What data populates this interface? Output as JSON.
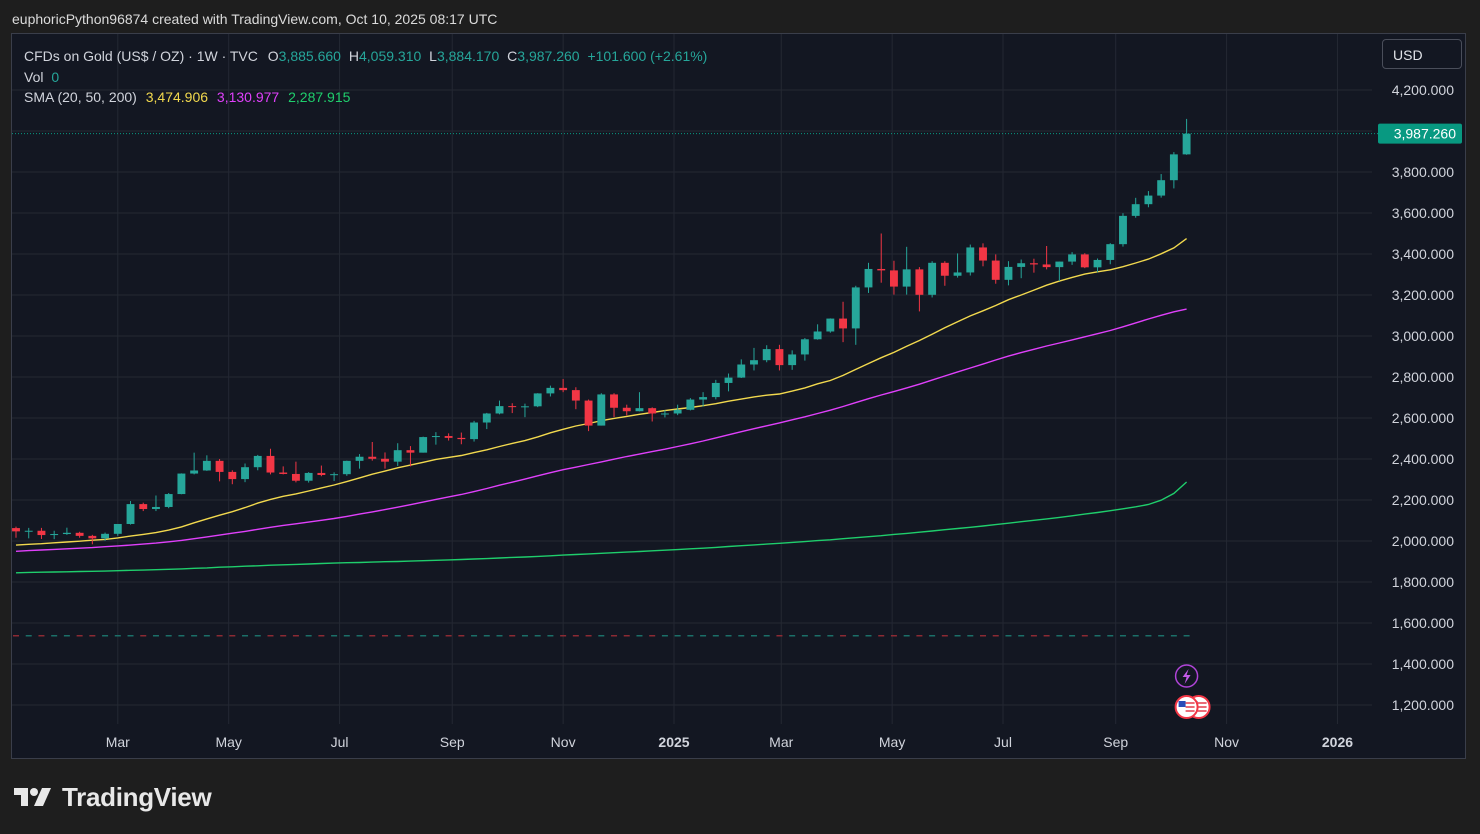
{
  "header": {
    "text": "euphoricPython96874 created with TradingView.com, Oct 10, 2025 08:17 UTC"
  },
  "legend": {
    "symbol": "CFDs on Gold (US$ / OZ) · 1W · TVC",
    "o_label": "O",
    "o_value": "3,885.660",
    "h_label": "H",
    "h_value": "4,059.310",
    "l_label": "L",
    "l_value": "3,884.170",
    "c_label": "C",
    "c_value": "3,987.260",
    "change": "+101.600 (+2.61%)",
    "vol_label": "Vol",
    "vol_value": "0",
    "sma_label": "SMA (20, 50, 200)",
    "sma20": "3,474.906",
    "sma50": "3,130.977",
    "sma200": "2,287.915"
  },
  "currency": "USD",
  "brand": {
    "name": "TradingView",
    "logo_icon": "tradingview-logo-icon"
  },
  "colors": {
    "up": "#26a69a",
    "down": "#f23645",
    "sma20": "#f2d94e",
    "sma50": "#e040fb",
    "sma200": "#1fce6c",
    "price_tag": "#089981"
  },
  "chart_data": {
    "type": "candlestick",
    "timeframe": "1W",
    "ylim": [
      1100,
      4350
    ],
    "y_ticks": [
      1200,
      1400,
      1600,
      1800,
      2000,
      2200,
      2400,
      2600,
      2800,
      3000,
      3200,
      3400,
      3600,
      3800,
      4000,
      4200
    ],
    "y_tick_labels": [
      "1,200.000",
      "1,400.000",
      "1,600.000",
      "1,800.000",
      "2,000.000",
      "2,200.000",
      "2,400.000",
      "2,600.000",
      "2,800.000",
      "3,000.000",
      "3,200.000",
      "3,400.000",
      "3,600.000",
      "3,800.000",
      "",
      "4,200.000"
    ],
    "x_ticks": [
      {
        "date": "2024-03-01",
        "label": "Mar"
      },
      {
        "date": "2024-05-01",
        "label": "May"
      },
      {
        "date": "2024-07-01",
        "label": "Jul"
      },
      {
        "date": "2024-09-01",
        "label": "Sep"
      },
      {
        "date": "2024-11-01",
        "label": "Nov"
      },
      {
        "date": "2025-01-01",
        "label": "2025"
      },
      {
        "date": "2025-03-01",
        "label": "Mar"
      },
      {
        "date": "2025-05-01",
        "label": "May"
      },
      {
        "date": "2025-07-01",
        "label": "Jul"
      },
      {
        "date": "2025-09-01",
        "label": "Sep"
      },
      {
        "date": "2025-11-01",
        "label": "Nov"
      },
      {
        "date": "2026-01-01",
        "label": "2026"
      }
    ],
    "xlim": [
      "2024-01-05",
      "2026-01-20"
    ],
    "last_price": 3987.26,
    "last_price_label": "3,987.260",
    "ohlc": [
      [
        "2024-01-05",
        2063,
        2070,
        2016,
        2047
      ],
      [
        "2024-01-12",
        2047,
        2064,
        2013,
        2050
      ],
      [
        "2024-01-19",
        2050,
        2064,
        2010,
        2029
      ],
      [
        "2024-01-26",
        2029,
        2050,
        2009,
        2034
      ],
      [
        "2024-02-02",
        2034,
        2065,
        2030,
        2040
      ],
      [
        "2024-02-09",
        2040,
        2045,
        2016,
        2025
      ],
      [
        "2024-02-16",
        2025,
        2030,
        1984,
        2013
      ],
      [
        "2024-02-23",
        2013,
        2041,
        2001,
        2035
      ],
      [
        "2024-03-01",
        2035,
        2083,
        2025,
        2083
      ],
      [
        "2024-03-08",
        2083,
        2195,
        2080,
        2180
      ],
      [
        "2024-03-15",
        2180,
        2187,
        2146,
        2156
      ],
      [
        "2024-03-22",
        2156,
        2222,
        2146,
        2166
      ],
      [
        "2024-03-29",
        2166,
        2234,
        2160,
        2229
      ],
      [
        "2024-04-05",
        2229,
        2330,
        2228,
        2329
      ],
      [
        "2024-04-12",
        2329,
        2431,
        2325,
        2344
      ],
      [
        "2024-04-19",
        2344,
        2418,
        2342,
        2391
      ],
      [
        "2024-04-26",
        2391,
        2400,
        2291,
        2337
      ],
      [
        "2024-05-03",
        2337,
        2345,
        2277,
        2302
      ],
      [
        "2024-05-10",
        2302,
        2378,
        2287,
        2360
      ],
      [
        "2024-05-17",
        2360,
        2420,
        2345,
        2415
      ],
      [
        "2024-05-24",
        2415,
        2450,
        2325,
        2334
      ],
      [
        "2024-05-31",
        2334,
        2364,
        2325,
        2327
      ],
      [
        "2024-06-07",
        2327,
        2387,
        2286,
        2294
      ],
      [
        "2024-06-14",
        2294,
        2336,
        2285,
        2332
      ],
      [
        "2024-06-21",
        2332,
        2368,
        2316,
        2322
      ],
      [
        "2024-06-28",
        2322,
        2335,
        2293,
        2326
      ],
      [
        "2024-07-05",
        2326,
        2392,
        2318,
        2391
      ],
      [
        "2024-07-12",
        2391,
        2424,
        2353,
        2411
      ],
      [
        "2024-07-19",
        2411,
        2483,
        2392,
        2401
      ],
      [
        "2024-07-26",
        2401,
        2432,
        2353,
        2387
      ],
      [
        "2024-08-02",
        2387,
        2477,
        2366,
        2443
      ],
      [
        "2024-08-09",
        2443,
        2463,
        2364,
        2431
      ],
      [
        "2024-08-16",
        2431,
        2509,
        2431,
        2507
      ],
      [
        "2024-08-23",
        2507,
        2531,
        2470,
        2512
      ],
      [
        "2024-08-30",
        2512,
        2525,
        2490,
        2503
      ],
      [
        "2024-09-06",
        2503,
        2529,
        2472,
        2497
      ],
      [
        "2024-09-13",
        2497,
        2586,
        2485,
        2578
      ],
      [
        "2024-09-20",
        2578,
        2625,
        2546,
        2622
      ],
      [
        "2024-09-27",
        2622,
        2685,
        2618,
        2658
      ],
      [
        "2024-10-04",
        2658,
        2672,
        2624,
        2653
      ],
      [
        "2024-10-11",
        2653,
        2670,
        2604,
        2657
      ],
      [
        "2024-10-18",
        2657,
        2721,
        2653,
        2720
      ],
      [
        "2024-10-25",
        2720,
        2758,
        2705,
        2747
      ],
      [
        "2024-11-01",
        2747,
        2790,
        2726,
        2736
      ],
      [
        "2024-11-08",
        2736,
        2750,
        2643,
        2685
      ],
      [
        "2024-11-15",
        2685,
        2690,
        2536,
        2563
      ],
      [
        "2024-11-22",
        2563,
        2721,
        2563,
        2715
      ],
      [
        "2024-11-29",
        2715,
        2721,
        2605,
        2650
      ],
      [
        "2024-12-06",
        2650,
        2665,
        2613,
        2633
      ],
      [
        "2024-12-13",
        2633,
        2726,
        2632,
        2648
      ],
      [
        "2024-12-20",
        2648,
        2652,
        2583,
        2622
      ],
      [
        "2024-12-27",
        2622,
        2638,
        2603,
        2622
      ],
      [
        "2025-01-03",
        2622,
        2665,
        2614,
        2640
      ],
      [
        "2025-01-10",
        2640,
        2697,
        2637,
        2690
      ],
      [
        "2025-01-17",
        2690,
        2726,
        2656,
        2702
      ],
      [
        "2025-01-24",
        2702,
        2786,
        2691,
        2771
      ],
      [
        "2025-01-31",
        2771,
        2817,
        2730,
        2797
      ],
      [
        "2025-02-07",
        2797,
        2886,
        2795,
        2861
      ],
      [
        "2025-02-14",
        2861,
        2942,
        2832,
        2882
      ],
      [
        "2025-02-21",
        2882,
        2955,
        2872,
        2936
      ],
      [
        "2025-02-28",
        2936,
        2957,
        2832,
        2858
      ],
      [
        "2025-03-07",
        2858,
        2930,
        2835,
        2910
      ],
      [
        "2025-03-14",
        2910,
        2990,
        2880,
        2984
      ],
      [
        "2025-03-21",
        2984,
        3057,
        2982,
        3022
      ],
      [
        "2025-03-28",
        3022,
        3086,
        3016,
        3085
      ],
      [
        "2025-04-04",
        3085,
        3167,
        2970,
        3037
      ],
      [
        "2025-04-11",
        3037,
        3245,
        2957,
        3237
      ],
      [
        "2025-04-18",
        3237,
        3357,
        3210,
        3327
      ],
      [
        "2025-04-25",
        3327,
        3500,
        3260,
        3320
      ],
      [
        "2025-05-02",
        3320,
        3367,
        3202,
        3241
      ],
      [
        "2025-05-09",
        3241,
        3435,
        3202,
        3325
      ],
      [
        "2025-05-16",
        3325,
        3336,
        3120,
        3201
      ],
      [
        "2025-05-23",
        3201,
        3365,
        3188,
        3357
      ],
      [
        "2025-05-30",
        3357,
        3365,
        3245,
        3294
      ],
      [
        "2025-06-06",
        3294,
        3403,
        3285,
        3310
      ],
      [
        "2025-06-13",
        3310,
        3446,
        3295,
        3432
      ],
      [
        "2025-06-20",
        3432,
        3452,
        3340,
        3368
      ],
      [
        "2025-06-27",
        3368,
        3398,
        3255,
        3274
      ],
      [
        "2025-07-04",
        3274,
        3365,
        3247,
        3337
      ],
      [
        "2025-07-11",
        3337,
        3373,
        3282,
        3355
      ],
      [
        "2025-07-18",
        3355,
        3377,
        3309,
        3349
      ],
      [
        "2025-07-25",
        3349,
        3439,
        3325,
        3336
      ],
      [
        "2025-08-01",
        3336,
        3363,
        3268,
        3363
      ],
      [
        "2025-08-08",
        3363,
        3409,
        3347,
        3398
      ],
      [
        "2025-08-15",
        3398,
        3404,
        3331,
        3335
      ],
      [
        "2025-08-22",
        3335,
        3378,
        3311,
        3371
      ],
      [
        "2025-08-29",
        3371,
        3453,
        3350,
        3448
      ],
      [
        "2025-09-05",
        3448,
        3599,
        3436,
        3586
      ],
      [
        "2025-09-12",
        3586,
        3674,
        3577,
        3643
      ],
      [
        "2025-09-19",
        3643,
        3707,
        3628,
        3685
      ],
      [
        "2025-09-26",
        3685,
        3790,
        3675,
        3760
      ],
      [
        "2025-10-03",
        3760,
        3897,
        3720,
        3886
      ],
      [
        "2025-10-10",
        3886,
        4059,
        3884,
        3987
      ]
    ],
    "sma20": [
      1980,
      1984,
      1987,
      1991,
      1995,
      1999,
      2004,
      2008,
      2015,
      2024,
      2032,
      2041,
      2053,
      2069,
      2089,
      2108,
      2126,
      2143,
      2163,
      2185,
      2203,
      2218,
      2230,
      2244,
      2259,
      2273,
      2290,
      2308,
      2326,
      2341,
      2357,
      2370,
      2384,
      2398,
      2408,
      2417,
      2431,
      2445,
      2461,
      2476,
      2490,
      2508,
      2528,
      2545,
      2561,
      2573,
      2587,
      2598,
      2608,
      2618,
      2627,
      2636,
      2644,
      2651,
      2660,
      2670,
      2682,
      2692,
      2703,
      2711,
      2717,
      2731,
      2747,
      2767,
      2783,
      2808,
      2837,
      2866,
      2894,
      2920,
      2950,
      2978,
      3009,
      3040,
      3070,
      3098,
      3123,
      3149,
      3177,
      3200,
      3224,
      3248,
      3268,
      3286,
      3302,
      3313,
      3323,
      3338,
      3356,
      3375,
      3401,
      3430,
      3475
    ],
    "sma50": [
      1950,
      1953,
      1956,
      1959,
      1962,
      1965,
      1968,
      1972,
      1976,
      1980,
      1985,
      1990,
      1996,
      2003,
      2011,
      2020,
      2029,
      2038,
      2047,
      2057,
      2067,
      2076,
      2084,
      2092,
      2101,
      2110,
      2120,
      2131,
      2142,
      2153,
      2165,
      2177,
      2190,
      2203,
      2215,
      2227,
      2241,
      2256,
      2272,
      2287,
      2302,
      2318,
      2333,
      2348,
      2360,
      2373,
      2386,
      2399,
      2412,
      2424,
      2436,
      2448,
      2461,
      2474,
      2488,
      2503,
      2518,
      2533,
      2548,
      2562,
      2576,
      2591,
      2606,
      2622,
      2638,
      2656,
      2675,
      2694,
      2712,
      2729,
      2747,
      2765,
      2785,
      2805,
      2825,
      2844,
      2863,
      2883,
      2902,
      2919,
      2935,
      2951,
      2966,
      2981,
      2996,
      3011,
      3027,
      3045,
      3064,
      3083,
      3101,
      3118,
      3131
    ],
    "sma200": [
      1845,
      1847,
      1848,
      1849,
      1850,
      1851,
      1852,
      1853,
      1855,
      1857,
      1858,
      1860,
      1862,
      1864,
      1867,
      1869,
      1872,
      1874,
      1877,
      1879,
      1882,
      1884,
      1886,
      1888,
      1890,
      1892,
      1894,
      1895,
      1897,
      1899,
      1900,
      1902,
      1904,
      1906,
      1908,
      1910,
      1912,
      1914,
      1917,
      1920,
      1922,
      1925,
      1928,
      1931,
      1934,
      1937,
      1940,
      1943,
      1946,
      1949,
      1952,
      1955,
      1958,
      1962,
      1965,
      1969,
      1973,
      1977,
      1981,
      1985,
      1989,
      1993,
      1997,
      2002,
      2006,
      2011,
      2016,
      2021,
      2026,
      2032,
      2037,
      2043,
      2049,
      2055,
      2061,
      2067,
      2073,
      2080,
      2087,
      2094,
      2101,
      2108,
      2115,
      2123,
      2131,
      2139,
      2148,
      2157,
      2167,
      2178,
      2199,
      2232,
      2288
    ]
  }
}
